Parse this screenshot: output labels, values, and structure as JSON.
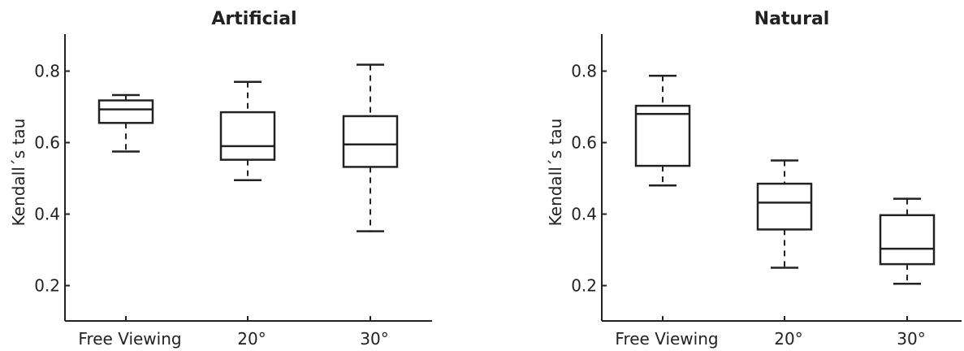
{
  "chart_data": [
    {
      "type": "box",
      "title": "Artificial",
      "ylabel": "Kendall´s tau",
      "xlabel": "",
      "categories": [
        "Free Viewing",
        "20°",
        "30°"
      ],
      "yticks": [
        "0.2",
        "0.4",
        "0.6",
        "0.8"
      ],
      "ylim": [
        0.1,
        0.91
      ],
      "boxes": [
        {
          "category": "Free Viewing",
          "min": 0.575,
          "q1": 0.655,
          "median": 0.693,
          "q3": 0.718,
          "max": 0.733
        },
        {
          "category": "20°",
          "min": 0.495,
          "q1": 0.552,
          "median": 0.59,
          "q3": 0.685,
          "max": 0.77
        },
        {
          "category": "30°",
          "min": 0.352,
          "q1": 0.532,
          "median": 0.595,
          "q3": 0.674,
          "max": 0.818
        }
      ]
    },
    {
      "type": "box",
      "title": "Natural",
      "ylabel": "Kendall´s tau",
      "xlabel": "",
      "categories": [
        "Free Viewing",
        "20°",
        "30°"
      ],
      "yticks": [
        "0.2",
        "0.4",
        "0.6",
        "0.8"
      ],
      "ylim": [
        0.1,
        0.91
      ],
      "boxes": [
        {
          "category": "Free Viewing",
          "min": 0.48,
          "q1": 0.535,
          "median": 0.68,
          "q3": 0.703,
          "max": 0.787
        },
        {
          "category": "20°",
          "min": 0.25,
          "q1": 0.357,
          "median": 0.432,
          "q3": 0.485,
          "max": 0.55
        },
        {
          "category": "30°",
          "min": 0.205,
          "q1": 0.26,
          "median": 0.303,
          "q3": 0.397,
          "max": 0.443
        }
      ]
    }
  ]
}
